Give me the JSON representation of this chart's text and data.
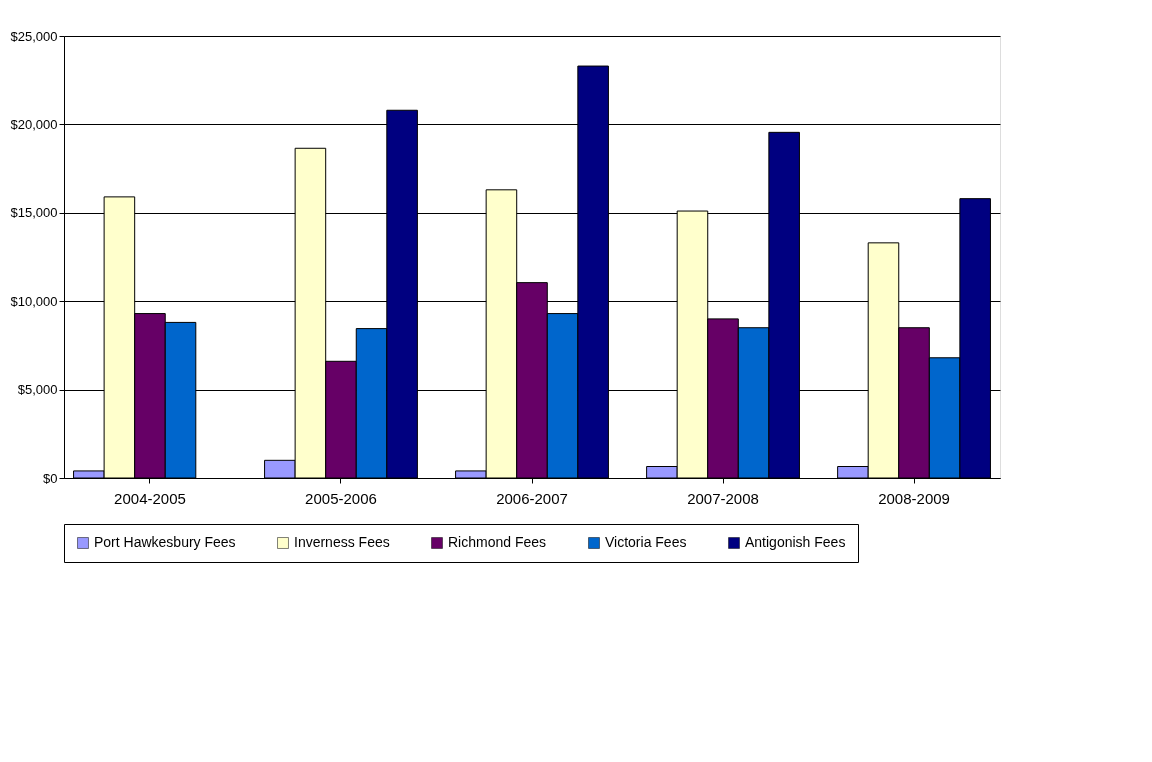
{
  "chart_data": {
    "type": "bar",
    "categories": [
      "2004-2005",
      "2005-2006",
      "2006-2007",
      "2007-2008",
      "2008-2009"
    ],
    "series": [
      {
        "name": "Port Hawkesbury Fees",
        "color": "#9999ff",
        "values": [
          400,
          1000,
          400,
          650,
          650
        ]
      },
      {
        "name": "Inverness Fees",
        "color": "#ffffcc",
        "values": [
          15900,
          18650,
          16300,
          15100,
          13300
        ]
      },
      {
        "name": "Richmond Fees",
        "color": "#660066",
        "values": [
          9300,
          6600,
          11050,
          9000,
          8500
        ]
      },
      {
        "name": "Victoria Fees",
        "color": "#0066cc",
        "values": [
          8800,
          8450,
          9300,
          8500,
          6800
        ]
      },
      {
        "name": "Antigonish Fees",
        "color": "#000080",
        "values": [
          null,
          20800,
          23300,
          19550,
          15800
        ]
      }
    ],
    "ylim": [
      0,
      25000
    ],
    "yticks": [
      {
        "value": 0,
        "label": "$0"
      },
      {
        "value": 5000,
        "label": "$5,000"
      },
      {
        "value": 10000,
        "label": "$10,000"
      },
      {
        "value": 15000,
        "label": "$15,000"
      },
      {
        "value": 20000,
        "label": "$20,000"
      },
      {
        "value": 25000,
        "label": "$25,000"
      }
    ],
    "grid": "y",
    "legend": "bottom"
  }
}
